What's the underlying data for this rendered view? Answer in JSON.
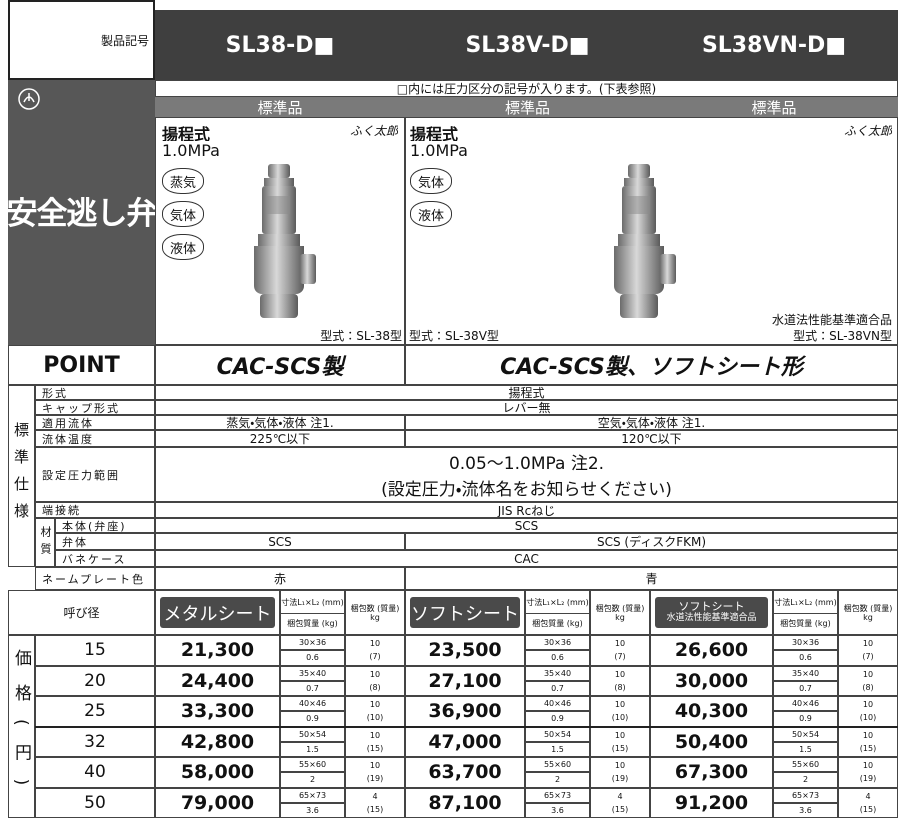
{
  "header": {
    "label": "製品記号",
    "models": [
      "SL38-D■",
      "SL38V-D■",
      "SL38VN-D■"
    ]
  },
  "note": "□内には圧力区分の記号が入ります。(下表参照)",
  "standard": [
    "標準品",
    "標準品",
    "標準品"
  ],
  "category": "安全逃し弁",
  "products": [
    {
      "type": "揚程式",
      "pressure": "1.0MPa",
      "brand": "ふく太郎",
      "fluids": [
        "蒸気",
        "気体",
        "液体"
      ],
      "model": "型式：SL-38型"
    },
    {
      "type": "揚程式",
      "pressure": "1.0MPa",
      "fluids": [
        "気体",
        "液体"
      ],
      "model": "型式：SL-38V型"
    },
    {
      "brand": "ふく太郎",
      "certification": "水道法性能基準適合品",
      "model": "型式：SL-38VN型"
    }
  ],
  "point": {
    "label": "POINT",
    "items": [
      "CAC-SCS製",
      "CAC-SCS製、ソフトシート形"
    ]
  },
  "spec": {
    "section": "標準仕様",
    "material": "材質",
    "rows": [
      {
        "label": "形式",
        "values": [
          "揚程式"
        ]
      },
      {
        "label": "キャップ形式",
        "values": [
          "レバー無"
        ]
      },
      {
        "label": "適用流体",
        "values": [
          "蒸気・気体・液体 注1.",
          "空気・気体・液体 注1."
        ]
      },
      {
        "label": "流体温度",
        "values": [
          "225℃以下",
          "120℃以下"
        ]
      },
      {
        "label": "設定圧力範囲",
        "lines": [
          "0.05～1.0MPa 注2.",
          "(設定圧力・流体名をお知らせください)"
        ]
      },
      {
        "label": "端接続",
        "values": [
          "JIS Rcねじ"
        ]
      },
      {
        "label": "本体(弁座)",
        "values": [
          "SCS"
        ]
      },
      {
        "label": "弁体",
        "values": [
          "SCS",
          "SCS (ディスクFKM)"
        ]
      },
      {
        "label": "バネケース",
        "values": [
          "CAC"
        ]
      },
      {
        "label": "ネームプレート色",
        "values": [
          "赤",
          "青"
        ]
      }
    ]
  },
  "price": {
    "section": "価格(円)",
    "size_label": "呼び径",
    "dim_label": "寸法L₁×L₂ (mm)",
    "weight_label": "梱包質量 (kg)",
    "pack_label": "梱包数 (質量) kg",
    "groups": [
      {
        "name": "メタルシート"
      },
      {
        "name": "ソフトシート"
      },
      {
        "name": "ソフトシート",
        "subname": "水道法性能基準適合品"
      }
    ],
    "rows": [
      {
        "size": "15",
        "items": [
          {
            "price": "21,300",
            "dims": "30×36",
            "weight": "0.6",
            "pack": "10",
            "pack_weight": "(7)"
          },
          {
            "price": "23,500",
            "dims": "30×36",
            "weight": "0.6",
            "pack": "10",
            "pack_weight": "(7)"
          },
          {
            "price": "26,600",
            "dims": "30×36",
            "weight": "0.6",
            "pack": "10",
            "pack_weight": "(7)"
          }
        ]
      },
      {
        "size": "20",
        "items": [
          {
            "price": "24,400",
            "dims": "35×40",
            "weight": "0.7",
            "pack": "10",
            "pack_weight": "(8)"
          },
          {
            "price": "27,100",
            "dims": "35×40",
            "weight": "0.7",
            "pack": "10",
            "pack_weight": "(8)"
          },
          {
            "price": "30,000",
            "dims": "35×40",
            "weight": "0.7",
            "pack": "10",
            "pack_weight": "(8)"
          }
        ]
      },
      {
        "size": "25",
        "items": [
          {
            "price": "33,300",
            "dims": "40×46",
            "weight": "0.9",
            "pack": "10",
            "pack_weight": "(10)"
          },
          {
            "price": "36,900",
            "dims": "40×46",
            "weight": "0.9",
            "pack": "10",
            "pack_weight": "(10)"
          },
          {
            "price": "40,300",
            "dims": "40×46",
            "weight": "0.9",
            "pack": "10",
            "pack_weight": "(10)"
          }
        ]
      },
      {
        "size": "32",
        "items": [
          {
            "price": "42,800",
            "dims": "50×54",
            "weight": "1.5",
            "pack": "10",
            "pack_weight": "(15)"
          },
          {
            "price": "47,000",
            "dims": "50×54",
            "weight": "1.5",
            "pack": "10",
            "pack_weight": "(15)"
          },
          {
            "price": "50,400",
            "dims": "50×54",
            "weight": "1.5",
            "pack": "10",
            "pack_weight": "(15)"
          }
        ]
      },
      {
        "size": "40",
        "items": [
          {
            "price": "58,000",
            "dims": "55×60",
            "weight": "2",
            "pack": "10",
            "pack_weight": "(19)"
          },
          {
            "price": "63,700",
            "dims": "55×60",
            "weight": "2",
            "pack": "10",
            "pack_weight": "(19)"
          },
          {
            "price": "67,300",
            "dims": "55×60",
            "weight": "2",
            "pack": "10",
            "pack_weight": "(19)"
          }
        ]
      },
      {
        "size": "50",
        "items": [
          {
            "price": "79,000",
            "dims": "65×73",
            "weight": "3.6",
            "pack": "4",
            "pack_weight": "(15)"
          },
          {
            "price": "87,100",
            "dims": "65×73",
            "weight": "3.6",
            "pack": "4",
            "pack_weight": "(15)"
          },
          {
            "price": "91,200",
            "dims": "65×73",
            "weight": "3.6",
            "pack": "4",
            "pack_weight": "(15)"
          }
        ]
      }
    ]
  }
}
